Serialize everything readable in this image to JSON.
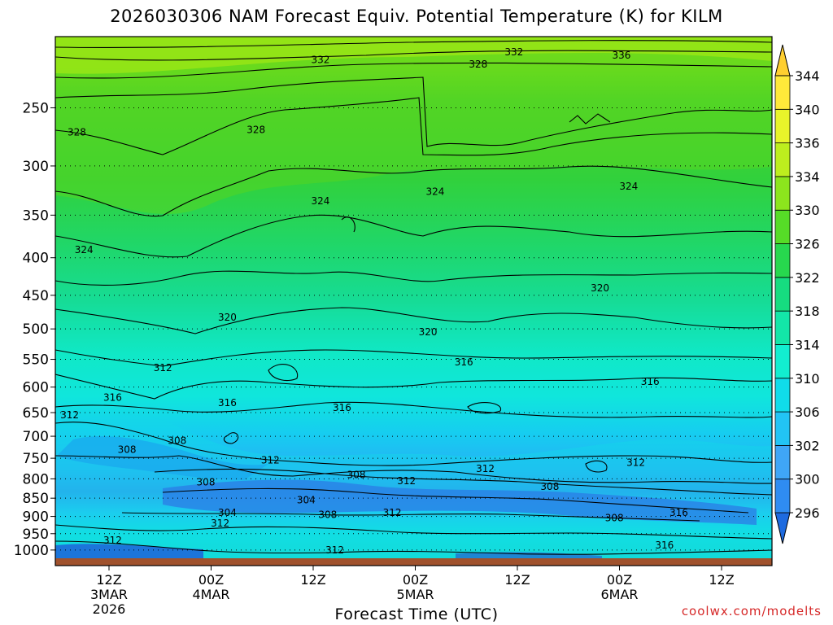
{
  "chart_data": {
    "type": "heatmap",
    "title": "2026030306 NAM Forecast Equiv. Potential Temperature (K) for KILM",
    "xlabel": "Forecast Time (UTC)",
    "ylabel": "",
    "y_axis": {
      "scale": "log",
      "inverted": true,
      "ticks": [
        250,
        300,
        350,
        400,
        450,
        500,
        550,
        600,
        650,
        700,
        750,
        800,
        850,
        900,
        950,
        1000
      ],
      "tick_labels": [
        "250",
        "300",
        "350",
        "400",
        "450",
        "500",
        "550",
        "600",
        "650",
        "700",
        "750",
        "800",
        "850",
        "900",
        "950",
        "1000"
      ],
      "range": [
        200,
        1050
      ]
    },
    "x_axis": {
      "ticks": [
        {
          "line1": "12Z",
          "line2": "3MAR",
          "line3": "2026"
        },
        {
          "line1": "00Z",
          "line2": "4MAR",
          "line3": ""
        },
        {
          "line1": "12Z",
          "line2": "",
          "line3": ""
        },
        {
          "line1": "00Z",
          "line2": "5MAR",
          "line3": ""
        },
        {
          "line1": "12Z",
          "line2": "",
          "line3": ""
        },
        {
          "line1": "00Z",
          "line2": "6MAR",
          "line3": ""
        },
        {
          "line1": "12Z",
          "line2": "",
          "line3": ""
        }
      ]
    },
    "colorbar": {
      "labels": [
        "296",
        "300",
        "302",
        "306",
        "310",
        "314",
        "318",
        "322",
        "326",
        "330",
        "334",
        "336",
        "340",
        "344"
      ],
      "colors": [
        "#1e6be0",
        "#2f8cf2",
        "#3fa6f7",
        "#22c4f5",
        "#10dcea",
        "#12eed0",
        "#13e6a8",
        "#16dc80",
        "#27d84e",
        "#56dc27",
        "#8ce51d",
        "#bdee1e",
        "#e8f42a",
        "#ffe93a",
        "#ffcf30"
      ]
    },
    "contour_labels": [
      {
        "text": "332",
        "p": 215,
        "xf": 0.37
      },
      {
        "text": "332",
        "p": 210,
        "xf": 0.64
      },
      {
        "text": "328",
        "p": 218,
        "xf": 0.59
      },
      {
        "text": "336",
        "p": 212,
        "xf": 0.79
      },
      {
        "text": "328",
        "p": 270,
        "xf": 0.03
      },
      {
        "text": "328",
        "p": 268,
        "xf": 0.28
      },
      {
        "text": "324",
        "p": 335,
        "xf": 0.37
      },
      {
        "text": "324",
        "p": 325,
        "xf": 0.53
      },
      {
        "text": "324",
        "p": 320,
        "xf": 0.8
      },
      {
        "text": "324",
        "p": 390,
        "xf": 0.04
      },
      {
        "text": "320",
        "p": 440,
        "xf": 0.76
      },
      {
        "text": "320",
        "p": 482,
        "xf": 0.24
      },
      {
        "text": "320",
        "p": 505,
        "xf": 0.52
      },
      {
        "text": "316",
        "p": 555,
        "xf": 0.57
      },
      {
        "text": "316",
        "p": 590,
        "xf": 0.83
      },
      {
        "text": "316",
        "p": 620,
        "xf": 0.08
      },
      {
        "text": "316",
        "p": 630,
        "xf": 0.24
      },
      {
        "text": "316",
        "p": 640,
        "xf": 0.4
      },
      {
        "text": "312",
        "p": 565,
        "xf": 0.15
      },
      {
        "text": "312",
        "p": 655,
        "xf": 0.02
      },
      {
        "text": "308",
        "p": 710,
        "xf": 0.17
      },
      {
        "text": "308",
        "p": 730,
        "xf": 0.1
      },
      {
        "text": "312",
        "p": 755,
        "xf": 0.3
      },
      {
        "text": "312",
        "p": 775,
        "xf": 0.6
      },
      {
        "text": "312",
        "p": 760,
        "xf": 0.81
      },
      {
        "text": "308",
        "p": 790,
        "xf": 0.42
      },
      {
        "text": "312",
        "p": 805,
        "xf": 0.49
      },
      {
        "text": "308",
        "p": 808,
        "xf": 0.21
      },
      {
        "text": "308",
        "p": 820,
        "xf": 0.69
      },
      {
        "text": "304",
        "p": 855,
        "xf": 0.35
      },
      {
        "text": "304",
        "p": 890,
        "xf": 0.24
      },
      {
        "text": "308",
        "p": 895,
        "xf": 0.38
      },
      {
        "text": "312",
        "p": 890,
        "xf": 0.47
      },
      {
        "text": "308",
        "p": 905,
        "xf": 0.78
      },
      {
        "text": "316",
        "p": 890,
        "xf": 0.87
      },
      {
        "text": "312",
        "p": 920,
        "xf": 0.23
      },
      {
        "text": "312",
        "p": 970,
        "xf": 0.08
      },
      {
        "text": "312",
        "p": 1000,
        "xf": 0.39
      },
      {
        "text": "316",
        "p": 985,
        "xf": 0.85
      }
    ]
  },
  "xlabel_text": "Forecast Time (UTC)",
  "credit": "coolwx.com/modelts"
}
